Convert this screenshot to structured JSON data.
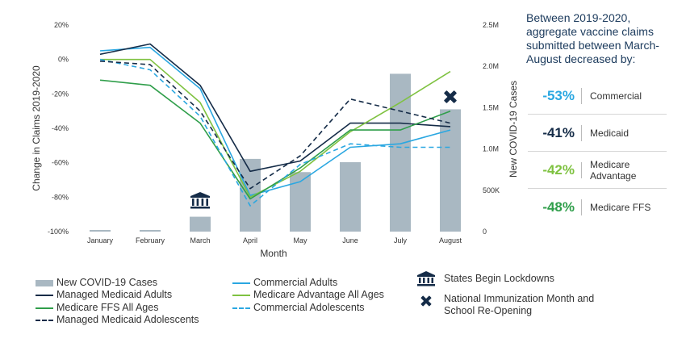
{
  "chart_data": {
    "type": "bar+line",
    "categories": [
      "January",
      "February",
      "March",
      "April",
      "May",
      "June",
      "July",
      "August"
    ],
    "xlabel": "Month",
    "ylabel_left": "Change in Claims 2019-2020",
    "ylabel_right": "New COVID-19 Cases",
    "left_ticks": [
      "20%",
      "0%",
      "-20%",
      "-40%",
      "-60%",
      "-80%",
      "-100%"
    ],
    "left_tick_values": [
      20,
      0,
      -20,
      -40,
      -60,
      -80,
      -100
    ],
    "ylim_left": [
      -100,
      20
    ],
    "right_ticks": [
      "2.5M",
      "2.0M",
      "1.5M",
      "1.0M",
      "500K",
      "0"
    ],
    "right_tick_values": [
      2.5,
      2.0,
      1.5,
      1.0,
      0.5,
      0
    ],
    "ylim_right": [
      0,
      2.5
    ],
    "bars": {
      "name": "New COVID-19 Cases",
      "color": "#a9b8c2",
      "values": [
        0.0,
        0.0,
        0.18,
        0.88,
        0.72,
        0.84,
        1.91,
        1.48
      ]
    },
    "series": [
      {
        "name": "Commercial Adults",
        "color": "#2aa7e1",
        "dash": false,
        "values": [
          5,
          7,
          -17,
          -79,
          -71,
          -51,
          -49,
          -41
        ]
      },
      {
        "name": "Managed Medicaid Adults",
        "color": "#152c48",
        "dash": false,
        "values": [
          3,
          9,
          -15,
          -65,
          -59,
          -37,
          -37,
          -39
        ]
      },
      {
        "name": "Medicare Advantage All Ages",
        "color": "#7fc241",
        "dash": false,
        "values": [
          0,
          0,
          -25,
          -80,
          -65,
          -42,
          -25,
          -7
        ]
      },
      {
        "name": "Medicare FFS All Ages",
        "color": "#2f9e4a",
        "dash": false,
        "values": [
          -12,
          -15,
          -37,
          -81,
          -63,
          -41,
          -41,
          -30
        ]
      },
      {
        "name": "Commercial Adolescents",
        "color": "#2aa7e1",
        "dash": true,
        "values": [
          0,
          -6,
          -33,
          -85,
          -61,
          -49,
          -51,
          -51
        ]
      },
      {
        "name": "Managed Medicaid Adolescents",
        "color": "#152c48",
        "dash": true,
        "values": [
          -1,
          -3,
          -30,
          -75,
          -56,
          -23,
          -30,
          -37
        ]
      }
    ],
    "grid": false
  },
  "events": {
    "lockdowns": {
      "label": "States Begin Lockdowns",
      "icon": "bank-icon",
      "month": "March"
    },
    "immunization": {
      "label": "National Immunization Month and School Re-Opening",
      "icon": "syringe-icon",
      "month": "August"
    }
  },
  "panel": {
    "heading": "Between 2019-2020, aggregate vaccine claims submitted between March-August decreased by:",
    "stats": [
      {
        "value": "-53%",
        "label": "Commercial",
        "color": "#2aa7e1"
      },
      {
        "value": "-41%",
        "label": "Medicaid",
        "color": "#152c48"
      },
      {
        "value": "-42%",
        "label": "Medicare Advantage",
        "color": "#7fc241"
      },
      {
        "value": "-48%",
        "label": "Medicare FFS",
        "color": "#2f9e4a"
      }
    ]
  },
  "legend": {
    "items": [
      "New COVID-19 Cases",
      "Managed Medicaid Adults",
      "Medicare FFS All Ages",
      "Managed Medicaid Adolescents",
      "Commercial Adults",
      "Medicare Advantage All Ages",
      "Commercial Adolescents"
    ]
  }
}
